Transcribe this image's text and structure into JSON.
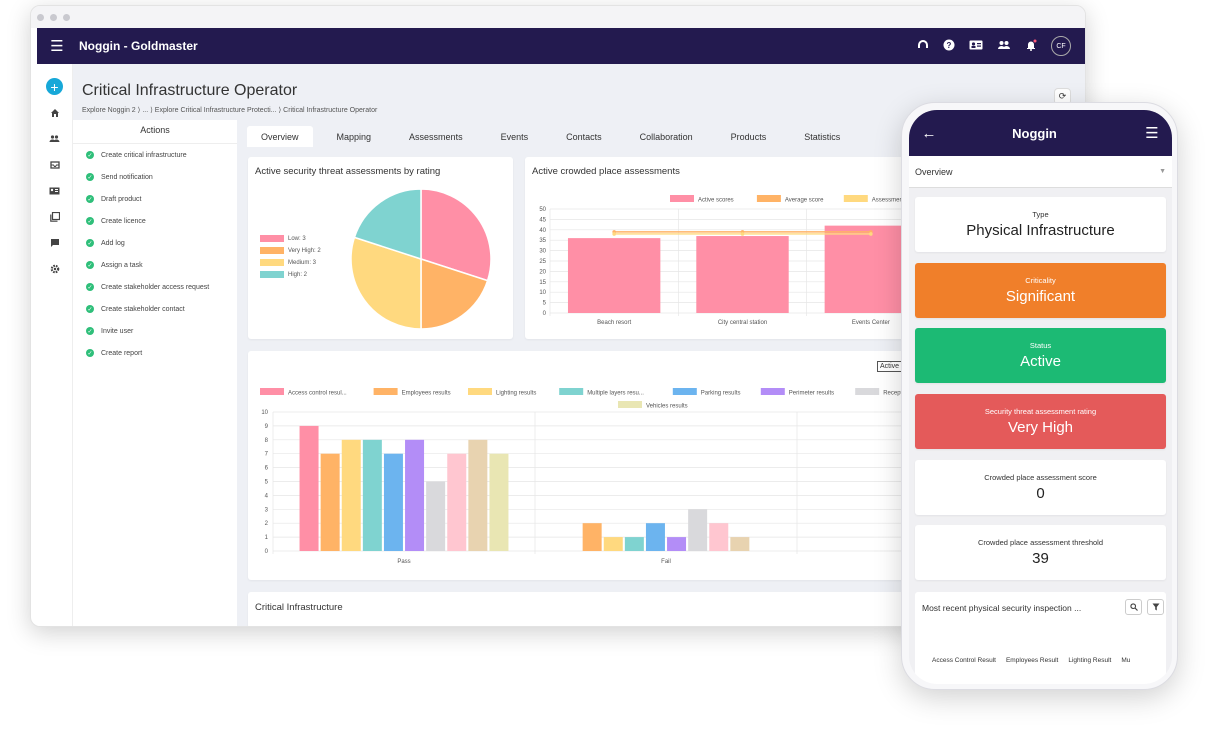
{
  "app": {
    "title": "Noggin - Goldmaster",
    "avatar_initials": "CF",
    "icons": [
      "headset-icon",
      "help-icon",
      "contact-card-icon",
      "groups-icon",
      "bell-icon"
    ]
  },
  "page": {
    "title": "Critical Infrastructure Operator",
    "breadcrumb": "Explore Noggin 2 ⟩ ... ⟩ Explore Critical Infrastructure Protecti... ⟩ Critical Infrastructure Operator"
  },
  "actions": {
    "heading": "Actions",
    "items": [
      "Create critical infrastructure",
      "Send notification",
      "Draft product",
      "Create licence",
      "Add log",
      "Assign a task",
      "Create stakeholder access request",
      "Create stakeholder contact",
      "Invite user",
      "Create report"
    ]
  },
  "tabs": [
    "Overview",
    "Mapping",
    "Assessments",
    "Events",
    "Contacts",
    "Collaboration",
    "Products",
    "Statistics"
  ],
  "active_tab": "Overview",
  "chart_data": [
    {
      "type": "pie",
      "title": "Active security threat assessments by rating",
      "legend": [
        "Low: 3",
        "Very High: 2",
        "Medium: 3",
        "High: 2"
      ],
      "labels": [
        "Low",
        "Very High",
        "Medium",
        "High"
      ],
      "values": [
        3,
        2,
        3,
        2
      ],
      "colors": [
        "#ff8fa6",
        "#ffb366",
        "#ffd97f",
        "#7fd3d0"
      ]
    },
    {
      "type": "bar",
      "title": "Active crowded place assessments",
      "legend": [
        "Active scores",
        "Average score",
        "Assessment thr"
      ],
      "categories": [
        "Beach resort",
        "City central station",
        "Events Center"
      ],
      "series": [
        {
          "name": "Active scores",
          "values": [
            36,
            37,
            42
          ],
          "color": "#ff8fa6"
        },
        {
          "name": "Average score",
          "values": [
            39,
            39,
            39
          ],
          "color": "#ffb366"
        },
        {
          "name": "Assessment thr",
          "values": [
            38,
            38,
            38
          ],
          "color": "#ffd97f"
        }
      ],
      "ylim": [
        0,
        50
      ],
      "yticks": [
        0,
        5,
        10,
        15,
        20,
        25,
        30,
        35,
        40,
        45,
        50
      ]
    },
    {
      "type": "bar",
      "title": "",
      "legend_button": "Active",
      "categories": [
        "Pass",
        "Fail"
      ],
      "series": [
        {
          "name": "Access control resul...",
          "values": [
            9,
            0
          ],
          "color": "#ff8fa6"
        },
        {
          "name": "Employees results",
          "values": [
            7,
            2
          ],
          "color": "#ffb366"
        },
        {
          "name": "Lighting results",
          "values": [
            8,
            1
          ],
          "color": "#ffd97f"
        },
        {
          "name": "Multiple layers resu...",
          "values": [
            8,
            1
          ],
          "color": "#7fd3d0"
        },
        {
          "name": "Parking results",
          "values": [
            7,
            2
          ],
          "color": "#6cb4ef"
        },
        {
          "name": "Perimeter results",
          "values": [
            8,
            1
          ],
          "color": "#b38df7"
        },
        {
          "name": "Reception results",
          "values": [
            5,
            3
          ],
          "color": "#d9d9dc"
        },
        {
          "name": "",
          "values": [
            7,
            2
          ],
          "color": "#ffc6d0"
        },
        {
          "name": "",
          "values": [
            8,
            1
          ],
          "color": "#e8d3b0"
        },
        {
          "name": "Vehicles results",
          "values": [
            7,
            0
          ],
          "color": "#e9e6b3"
        }
      ],
      "ylim": [
        0,
        10
      ],
      "yticks": [
        0,
        1,
        2,
        3,
        4,
        5,
        6,
        7,
        8,
        9,
        10
      ]
    }
  ],
  "bottom_card": {
    "title": "Critical Infrastructure"
  },
  "phone": {
    "title": "Noggin",
    "select_value": "Overview",
    "tiles": [
      {
        "label": "Type",
        "value": "Physical Infrastructure"
      },
      {
        "label": "Criticality",
        "value": "Significant"
      },
      {
        "label": "Status",
        "value": "Active"
      },
      {
        "label": "Security threat assessment rating",
        "value": "Very High"
      },
      {
        "label": "Crowded place assessment score",
        "value": "0"
      },
      {
        "label": "Crowded place assessment threshold",
        "value": "39"
      }
    ],
    "recent_title": "Most recent physical security inspection ...",
    "columns": [
      "Access Control Result",
      "Employees Result",
      "Lighting Result",
      "Mu"
    ]
  }
}
